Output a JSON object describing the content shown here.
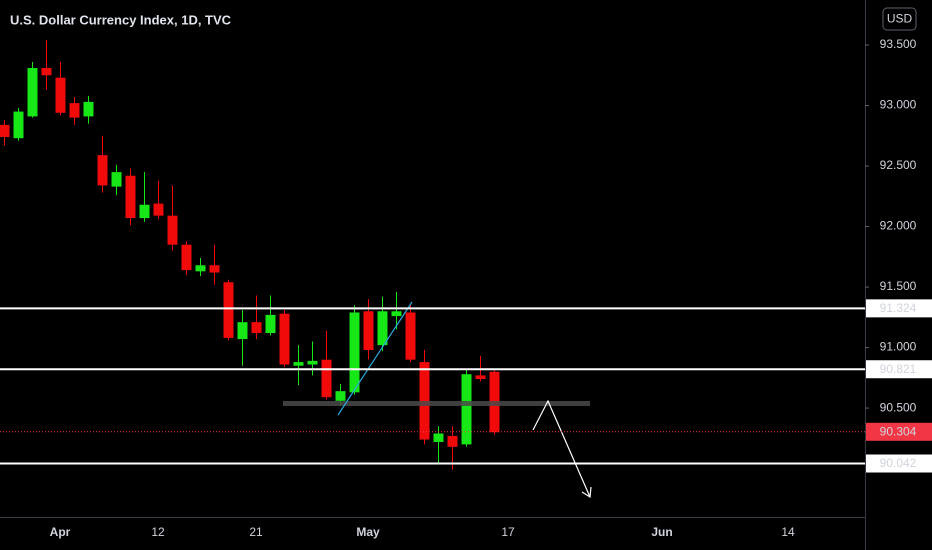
{
  "chart_data": {
    "type": "candlestick",
    "title": "U.S. Dollar Currency Index, 1D, TVC",
    "currency": "USD",
    "categories": [
      null,
      null,
      null,
      null,
      "Apr",
      null,
      null,
      null,
      null,
      null,
      null,
      "12",
      null,
      null,
      null,
      null,
      null,
      null,
      "21",
      null,
      null,
      null,
      null,
      null,
      null,
      null,
      "May",
      null,
      null,
      null,
      null,
      null,
      null,
      null,
      null,
      null,
      "17",
      null,
      null,
      null,
      null,
      null,
      null,
      null,
      null,
      null,
      null,
      "Jun",
      null,
      null,
      null,
      null,
      null,
      null,
      null,
      null,
      "14",
      null,
      null,
      null,
      null,
      null
    ],
    "open": [
      92.84,
      92.73,
      92.91,
      93.31,
      93.23,
      93.02,
      92.91,
      92.59,
      92.33,
      92.42,
      92.07,
      92.19,
      92.09,
      91.85,
      91.63,
      91.68,
      91.54,
      91.07,
      91.21,
      91.12,
      91.28,
      90.85,
      90.86,
      90.9,
      90.56,
      90.63,
      91.3,
      91.02,
      91.26,
      91.29,
      90.88,
      90.22,
      90.27,
      90.2,
      90.77,
      90.8,
      null,
      null,
      null,
      null,
      null,
      null,
      null,
      null,
      null,
      null,
      null,
      null,
      null,
      null,
      null,
      null,
      null,
      null,
      null,
      null,
      null,
      null,
      null,
      null,
      null,
      null
    ],
    "high": [
      92.88,
      92.98,
      93.36,
      93.54,
      93.36,
      93.07,
      93.08,
      92.75,
      92.51,
      92.48,
      92.45,
      92.38,
      92.34,
      91.88,
      91.74,
      91.85,
      91.56,
      91.31,
      91.43,
      91.43,
      91.31,
      91.02,
      91.05,
      91.14,
      90.7,
      91.35,
      91.4,
      91.42,
      91.46,
      91.35,
      90.98,
      90.35,
      90.35,
      90.82,
      90.93,
      90.82,
      null,
      null,
      null,
      null,
      null,
      null,
      null,
      null,
      null,
      null,
      null,
      null,
      null,
      null,
      null,
      null,
      null,
      null,
      null,
      null,
      null,
      null,
      null,
      null,
      null,
      null
    ],
    "low": [
      92.67,
      92.71,
      92.9,
      93.13,
      92.92,
      92.84,
      92.85,
      92.28,
      92.26,
      92.01,
      92.04,
      92.06,
      91.8,
      91.6,
      91.59,
      91.52,
      91.06,
      90.85,
      91.07,
      91.1,
      90.84,
      90.69,
      90.77,
      90.57,
      90.52,
      90.61,
      90.9,
      90.97,
      91.15,
      90.88,
      90.2,
      90.05,
      89.99,
      90.18,
      90.72,
      90.28,
      null,
      null,
      null,
      null,
      null,
      null,
      null,
      null,
      null,
      null,
      null,
      null,
      null,
      null,
      null,
      null,
      null,
      null,
      null,
      null,
      null,
      null,
      null,
      null,
      null,
      null
    ],
    "close": [
      92.74,
      92.95,
      93.31,
      93.25,
      92.94,
      92.9,
      93.03,
      92.34,
      92.45,
      92.07,
      92.18,
      92.09,
      91.85,
      91.64,
      91.68,
      91.62,
      91.08,
      91.21,
      91.12,
      91.27,
      90.86,
      90.88,
      90.89,
      90.59,
      90.64,
      91.29,
      90.98,
      91.3,
      91.3,
      90.9,
      90.24,
      90.29,
      90.18,
      90.78,
      90.74,
      90.3,
      null,
      null,
      null,
      null,
      null,
      null,
      null,
      null,
      null,
      null,
      null,
      null,
      null,
      null,
      null,
      null,
      null,
      null,
      null,
      null,
      null,
      null,
      null,
      null,
      null,
      null
    ],
    "up_color": "#17e617",
    "down_color": "#f00a0a",
    "ylim": [
      89.6,
      93.872
    ],
    "yticks": [
      {
        "value": 90.5,
        "label": "90.500"
      },
      {
        "value": 91,
        "label": "91.000"
      },
      {
        "value": 91.5,
        "label": "91.500"
      },
      {
        "value": 92,
        "label": "92.000"
      },
      {
        "value": 92.5,
        "label": "92.500"
      },
      {
        "value": 93,
        "label": "93.000"
      },
      {
        "value": 93.5,
        "label": "93.500"
      }
    ],
    "levels": [
      91.324,
      90.821,
      90.042
    ],
    "level_color": "#ffffff",
    "last_price": 90.304,
    "last_price_color": "#f23645",
    "grid": false
  }
}
